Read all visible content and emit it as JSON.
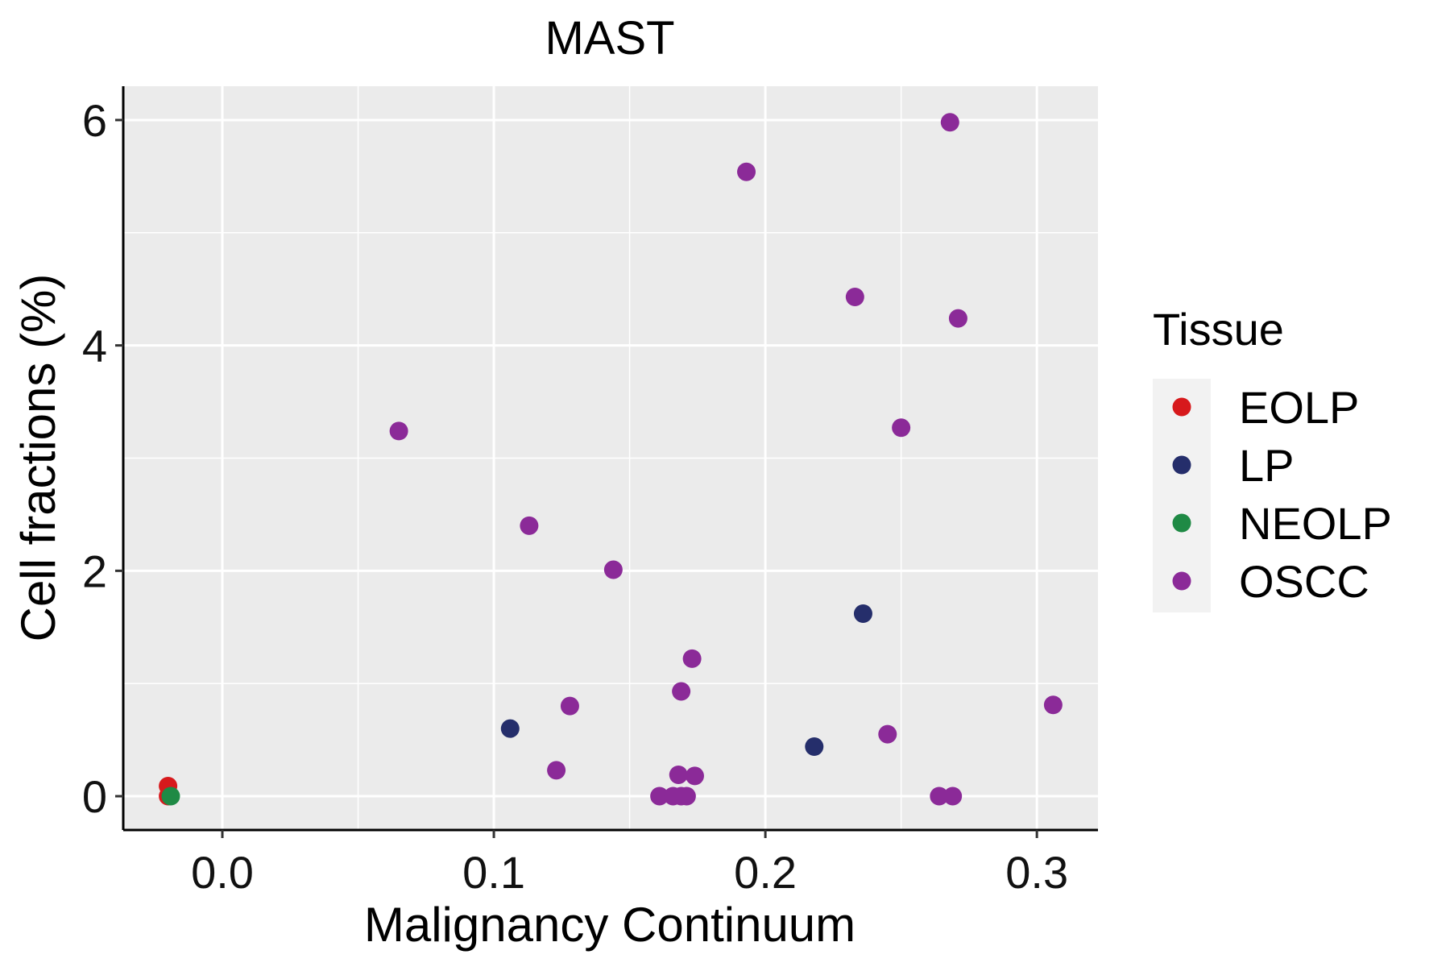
{
  "chart_data": {
    "type": "scatter",
    "title": "MAST",
    "xlabel": "Malignancy Continuum",
    "ylabel": "Cell fractions (%)",
    "xlim": [
      -0.0365,
      0.3225
    ],
    "ylim": [
      -0.3,
      6.3
    ],
    "x_ticks": [
      0.0,
      0.1,
      0.2,
      0.3
    ],
    "x_tick_labels": [
      "0.0",
      "0.1",
      "0.2",
      "0.3"
    ],
    "y_ticks": [
      0,
      2,
      4,
      6
    ],
    "y_tick_labels": [
      "0",
      "2",
      "4",
      "6"
    ],
    "x_minor": [
      0.05,
      0.15,
      0.25
    ],
    "y_minor": [
      1,
      3,
      5
    ],
    "grid": true,
    "legend": {
      "title": "Tissue",
      "placement": "right",
      "entries": [
        {
          "name": "EOLP",
          "color": "#D7191C"
        },
        {
          "name": "LP",
          "color": "#252E6B"
        },
        {
          "name": "NEOLP",
          "color": "#1F8A45"
        },
        {
          "name": "OSCC",
          "color": "#8B2A98"
        }
      ]
    },
    "series": [
      {
        "name": "EOLP",
        "color": "#D7191C",
        "points": [
          [
            -0.02,
            0.09
          ],
          [
            -0.02,
            0.0
          ]
        ]
      },
      {
        "name": "LP",
        "color": "#252E6B",
        "points": [
          [
            0.106,
            0.6
          ],
          [
            0.218,
            0.44
          ],
          [
            0.236,
            1.62
          ]
        ]
      },
      {
        "name": "NEOLP",
        "color": "#1F8A45",
        "points": [
          [
            -0.019,
            0.0
          ]
        ]
      },
      {
        "name": "OSCC",
        "color": "#8B2A98",
        "points": [
          [
            0.065,
            3.24
          ],
          [
            0.113,
            2.4
          ],
          [
            0.123,
            0.23
          ],
          [
            0.128,
            0.8
          ],
          [
            0.144,
            2.01
          ],
          [
            0.161,
            0.0
          ],
          [
            0.166,
            0.0
          ],
          [
            0.169,
            0.0
          ],
          [
            0.171,
            0.0
          ],
          [
            0.168,
            0.19
          ],
          [
            0.174,
            0.18
          ],
          [
            0.169,
            0.93
          ],
          [
            0.173,
            1.22
          ],
          [
            0.193,
            5.54
          ],
          [
            0.233,
            4.43
          ],
          [
            0.245,
            0.55
          ],
          [
            0.25,
            3.27
          ],
          [
            0.264,
            0.0
          ],
          [
            0.269,
            0.0
          ],
          [
            0.268,
            5.98
          ],
          [
            0.271,
            4.24
          ],
          [
            0.306,
            0.81
          ]
        ]
      }
    ]
  }
}
